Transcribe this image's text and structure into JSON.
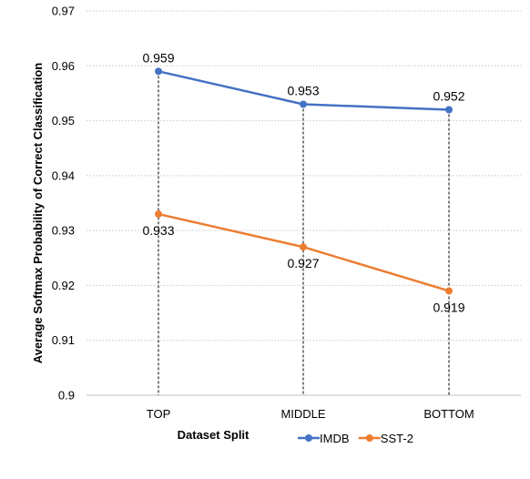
{
  "chart_data": {
    "type": "line",
    "categories": [
      "TOP",
      "MIDDLE",
      "BOTTOM"
    ],
    "series": [
      {
        "name": "IMDB",
        "values": [
          0.959,
          0.953,
          0.952
        ],
        "labels": [
          "0.959",
          "0.953",
          "0.952"
        ],
        "color": "#4472C4",
        "label_position": "above"
      },
      {
        "name": "SST-2",
        "values": [
          0.933,
          0.927,
          0.919
        ],
        "labels": [
          "0.933",
          "0.927",
          "0.919"
        ],
        "color": "#ED7D31",
        "label_position": "below"
      }
    ],
    "title": "",
    "xlabel": "Dataset Split",
    "ylabel": "Average Softmax Probability of Correct Classification",
    "ylim": [
      0.9,
      0.97
    ],
    "yticks": [
      "0.9",
      "0.91",
      "0.92",
      "0.93",
      "0.94",
      "0.95",
      "0.96",
      "0.97"
    ],
    "grid": "horizontal dotted",
    "drop_lines": true,
    "legend": "bottom-right"
  }
}
